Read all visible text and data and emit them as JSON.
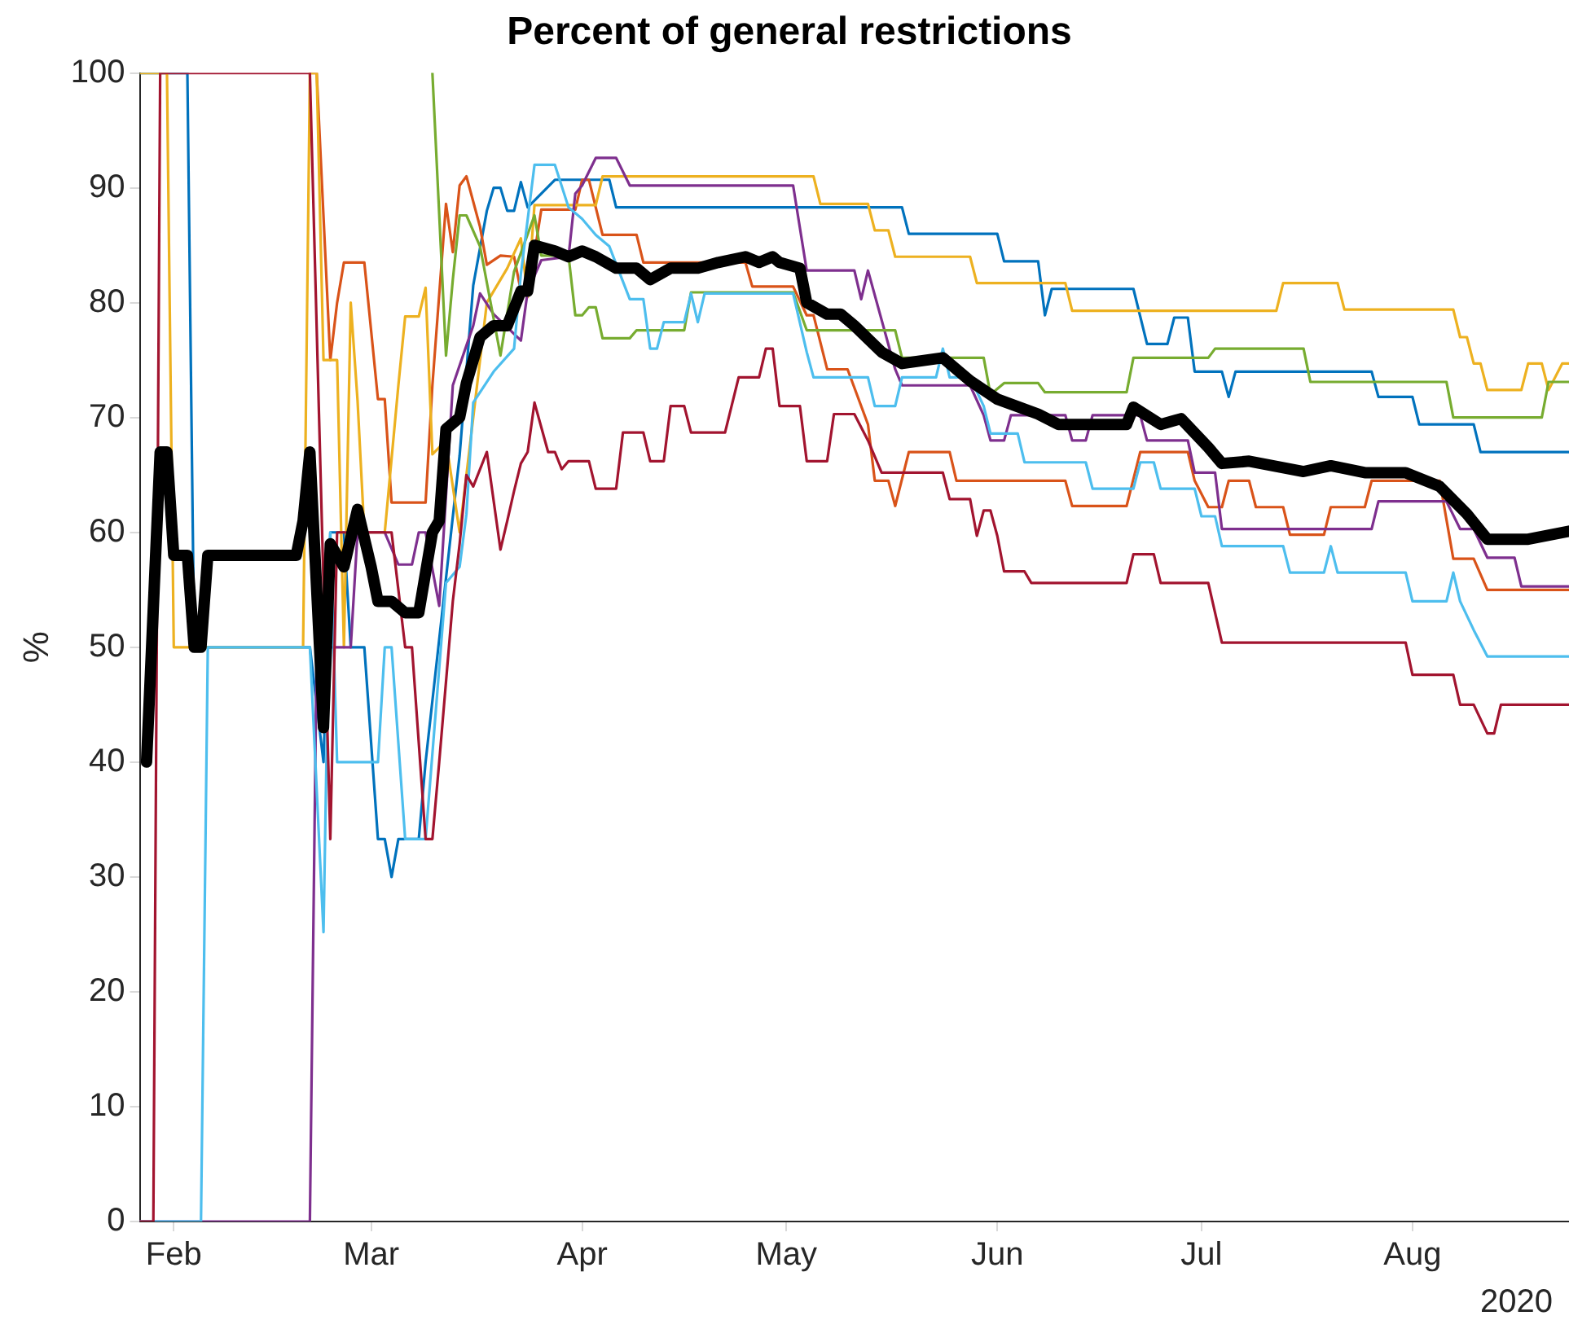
{
  "chart_data": {
    "type": "line",
    "title": "Percent of general restrictions",
    "ylabel": "%",
    "annotations": [
      "2020"
    ],
    "xlim": [
      "2020-01-27",
      "2020-08-24"
    ],
    "xticks": [
      {
        "value": "2020-02-01",
        "label": "Feb"
      },
      {
        "value": "2020-03-01",
        "label": "Mar"
      },
      {
        "value": "2020-04-01",
        "label": "Apr"
      },
      {
        "value": "2020-05-01",
        "label": "May"
      },
      {
        "value": "2020-06-01",
        "label": "Jun"
      },
      {
        "value": "2020-07-01",
        "label": "Jul"
      },
      {
        "value": "2020-08-01",
        "label": "Aug"
      }
    ],
    "ylim": [
      0,
      100
    ],
    "yticks": [
      0,
      10,
      20,
      30,
      40,
      50,
      60,
      70,
      80,
      90,
      100
    ],
    "grid": false,
    "marker": "none",
    "line_style": "solid",
    "series": [
      {
        "color": "#0072bd",
        "x": [
          "2020-01-27",
          "2020-02-03",
          "2020-02-04",
          "2020-02-21",
          "2020-02-23",
          "2020-02-24",
          "2020-02-26",
          "2020-02-27",
          "2020-02-29",
          "2020-03-02",
          "2020-03-03",
          "2020-03-04",
          "2020-03-05",
          "2020-03-08",
          "2020-03-09",
          "2020-03-14",
          "2020-03-16",
          "2020-03-18",
          "2020-03-19",
          "2020-03-20",
          "2020-03-21",
          "2020-03-22",
          "2020-03-23",
          "2020-03-24",
          "2020-03-28",
          "2020-04-05",
          "2020-04-06",
          "2020-05-18",
          "2020-05-19",
          "2020-06-01",
          "2020-06-02",
          "2020-06-07",
          "2020-06-08",
          "2020-06-09",
          "2020-06-21",
          "2020-06-23",
          "2020-06-26",
          "2020-06-27",
          "2020-06-29",
          "2020-06-30",
          "2020-07-04",
          "2020-07-05",
          "2020-07-06",
          "2020-07-26",
          "2020-07-27",
          "2020-08-01",
          "2020-08-02",
          "2020-08-10",
          "2020-08-11",
          "2020-08-24"
        ],
        "values": [
          100,
          100,
          50,
          50,
          40,
          60,
          60,
          50,
          50,
          33.3,
          33.3,
          30,
          33.3,
          33.3,
          40,
          66.7,
          81.5,
          88,
          90,
          90,
          88,
          88,
          90.5,
          88.3,
          90.7,
          90.7,
          88.3,
          88.3,
          86,
          86,
          83.6,
          83.6,
          78.9,
          81.2,
          81.2,
          76.4,
          76.4,
          78.7,
          78.7,
          74,
          74,
          71.8,
          74,
          74,
          71.8,
          71.8,
          69.4,
          69.4,
          67,
          67
        ]
      },
      {
        "color": "#d95319",
        "x": [
          "2020-02-21",
          "2020-02-22",
          "2020-02-24",
          "2020-02-25",
          "2020-02-26",
          "2020-02-29",
          "2020-03-02",
          "2020-03-03",
          "2020-03-04",
          "2020-03-09",
          "2020-03-10",
          "2020-03-12",
          "2020-03-13",
          "2020-03-14",
          "2020-03-15",
          "2020-03-17",
          "2020-03-18",
          "2020-03-20",
          "2020-03-22",
          "2020-03-23",
          "2020-03-24",
          "2020-03-26",
          "2020-03-31",
          "2020-04-01",
          "2020-04-02",
          "2020-04-04",
          "2020-04-09",
          "2020-04-10",
          "2020-04-25",
          "2020-04-26",
          "2020-05-02",
          "2020-05-04",
          "2020-05-05",
          "2020-05-07",
          "2020-05-10",
          "2020-05-13",
          "2020-05-14",
          "2020-05-16",
          "2020-05-17",
          "2020-05-19",
          "2020-05-25",
          "2020-05-26",
          "2020-06-11",
          "2020-06-12",
          "2020-06-20",
          "2020-06-22",
          "2020-06-29",
          "2020-06-30",
          "2020-07-02",
          "2020-07-04",
          "2020-07-05",
          "2020-07-08",
          "2020-07-09",
          "2020-07-13",
          "2020-07-14",
          "2020-07-19",
          "2020-07-20",
          "2020-07-25",
          "2020-07-26",
          "2020-08-05",
          "2020-08-07",
          "2020-08-10",
          "2020-08-12",
          "2020-08-24"
        ],
        "values": [
          100,
          100,
          75,
          80,
          83.5,
          83.5,
          71.6,
          71.6,
          62.6,
          62.6,
          72.8,
          88.6,
          84.4,
          90.2,
          91,
          86.6,
          83.3,
          84.1,
          84,
          81,
          80.5,
          88.1,
          88.1,
          90.7,
          90.7,
          85.9,
          85.9,
          83.5,
          83.5,
          81.4,
          81.4,
          78.9,
          78.9,
          74.2,
          74.2,
          69.4,
          64.5,
          64.5,
          62.3,
          67,
          67,
          64.5,
          64.5,
          62.3,
          62.3,
          67,
          67,
          64.5,
          62.2,
          62.2,
          64.5,
          64.5,
          62.2,
          62.2,
          59.8,
          59.8,
          62.2,
          62.2,
          64.5,
          64.5,
          57.7,
          57.7,
          55,
          55
        ]
      },
      {
        "color": "#edb120",
        "x": [
          "2020-01-27",
          "2020-01-31",
          "2020-02-01",
          "2020-02-20",
          "2020-02-21",
          "2020-02-22",
          "2020-02-23",
          "2020-02-25",
          "2020-02-26",
          "2020-02-27",
          "2020-02-28",
          "2020-02-29",
          "2020-03-03",
          "2020-03-05",
          "2020-03-06",
          "2020-03-08",
          "2020-03-09",
          "2020-03-10",
          "2020-03-12",
          "2020-03-14",
          "2020-03-18",
          "2020-03-21",
          "2020-03-23",
          "2020-03-24",
          "2020-03-25",
          "2020-04-03",
          "2020-04-04",
          "2020-05-05",
          "2020-05-06",
          "2020-05-13",
          "2020-05-14",
          "2020-05-16",
          "2020-05-17",
          "2020-05-28",
          "2020-05-29",
          "2020-06-11",
          "2020-06-12",
          "2020-07-12",
          "2020-07-13",
          "2020-07-21",
          "2020-07-22",
          "2020-08-07",
          "2020-08-08",
          "2020-08-09",
          "2020-08-10",
          "2020-08-11",
          "2020-08-12",
          "2020-08-17",
          "2020-08-18",
          "2020-08-20",
          "2020-08-21",
          "2020-08-23",
          "2020-08-24"
        ],
        "values": [
          100,
          100,
          50,
          50,
          100,
          100,
          75,
          75,
          50,
          80,
          71.5,
          60,
          60,
          72.8,
          78.8,
          78.8,
          81.3,
          66.8,
          68,
          60,
          80,
          83,
          85.6,
          80.5,
          88.5,
          88.5,
          91,
          91,
          88.6,
          88.6,
          86.3,
          86.3,
          84,
          84,
          81.7,
          81.7,
          79.3,
          79.3,
          81.7,
          81.7,
          79.4,
          79.4,
          77,
          77,
          74.7,
          74.7,
          72.4,
          72.4,
          74.7,
          74.7,
          72.4,
          74.7,
          74.7
        ]
      },
      {
        "color": "#7e2f8e",
        "x": [
          "2020-01-27",
          "2020-02-21",
          "2020-02-22",
          "2020-02-27",
          "2020-02-28",
          "2020-03-03",
          "2020-03-05",
          "2020-03-07",
          "2020-03-08",
          "2020-03-09",
          "2020-03-11",
          "2020-03-13",
          "2020-03-16",
          "2020-03-17",
          "2020-03-19",
          "2020-03-23",
          "2020-03-24",
          "2020-03-26",
          "2020-03-30",
          "2020-03-31",
          "2020-04-01",
          "2020-04-03",
          "2020-04-06",
          "2020-04-08",
          "2020-05-02",
          "2020-05-04",
          "2020-05-11",
          "2020-05-12",
          "2020-05-13",
          "2020-05-17",
          "2020-05-18",
          "2020-05-28",
          "2020-05-30",
          "2020-05-31",
          "2020-06-02",
          "2020-06-03",
          "2020-06-11",
          "2020-06-12",
          "2020-06-14",
          "2020-06-15",
          "2020-06-22",
          "2020-06-23",
          "2020-06-29",
          "2020-06-30",
          "2020-07-03",
          "2020-07-04",
          "2020-07-26",
          "2020-07-27",
          "2020-08-06",
          "2020-08-08",
          "2020-08-10",
          "2020-08-12",
          "2020-08-16",
          "2020-08-17",
          "2020-08-24"
        ],
        "values": [
          0,
          0,
          50,
          50,
          60,
          60,
          57.2,
          57.2,
          60,
          60,
          53.6,
          72.8,
          78,
          80.8,
          79,
          76.7,
          81,
          83.7,
          84,
          89.5,
          90.2,
          92.6,
          92.6,
          90.2,
          90.2,
          82.8,
          82.8,
          80.3,
          82.8,
          74.2,
          72.8,
          72.8,
          70.2,
          68,
          68,
          70.2,
          70.2,
          68,
          68,
          70.2,
          70.2,
          68,
          68,
          65.2,
          65.2,
          60.3,
          60.3,
          62.7,
          62.7,
          60.3,
          60.3,
          57.8,
          57.8,
          55.3,
          55.3
        ]
      },
      {
        "color": "#77ac30",
        "x": [
          "2020-03-10",
          "2020-03-12",
          "2020-03-13",
          "2020-03-14",
          "2020-03-15",
          "2020-03-17",
          "2020-03-19",
          "2020-03-20",
          "2020-03-22",
          "2020-03-25",
          "2020-03-26",
          "2020-03-30",
          "2020-03-31",
          "2020-04-01",
          "2020-04-02",
          "2020-04-03",
          "2020-04-04",
          "2020-04-08",
          "2020-04-09",
          "2020-04-16",
          "2020-04-17",
          "2020-05-02",
          "2020-05-04",
          "2020-05-17",
          "2020-05-18",
          "2020-05-30",
          "2020-05-31",
          "2020-06-02",
          "2020-06-07",
          "2020-06-08",
          "2020-06-20",
          "2020-06-21",
          "2020-07-02",
          "2020-07-03",
          "2020-07-16",
          "2020-07-17",
          "2020-08-06",
          "2020-08-07",
          "2020-08-20",
          "2020-08-21",
          "2020-08-24"
        ],
        "values": [
          100,
          75.4,
          82,
          87.6,
          87.6,
          84.9,
          78.6,
          75.4,
          82.7,
          87.6,
          84.1,
          84.1,
          78.9,
          78.9,
          79.6,
          79.6,
          76.9,
          76.9,
          77.6,
          77.6,
          80.9,
          80.9,
          77.6,
          77.6,
          75.2,
          75.2,
          72,
          73,
          73,
          72.2,
          72.2,
          75.2,
          75.2,
          76,
          76,
          73.1,
          73.1,
          70,
          70,
          73.1,
          73.1
        ]
      },
      {
        "color": "#4dbeee",
        "x": [
          "2020-01-27",
          "2020-02-05",
          "2020-02-06",
          "2020-02-21",
          "2020-02-23",
          "2020-02-24",
          "2020-02-25",
          "2020-03-02",
          "2020-03-03",
          "2020-03-04",
          "2020-03-06",
          "2020-03-09",
          "2020-03-12",
          "2020-03-14",
          "2020-03-15",
          "2020-03-16",
          "2020-03-19",
          "2020-03-22",
          "2020-03-23",
          "2020-03-25",
          "2020-03-28",
          "2020-03-30",
          "2020-04-01",
          "2020-04-03",
          "2020-04-05",
          "2020-04-08",
          "2020-04-10",
          "2020-04-11",
          "2020-04-12",
          "2020-04-13",
          "2020-04-16",
          "2020-04-17",
          "2020-04-18",
          "2020-04-19",
          "2020-05-02",
          "2020-05-04",
          "2020-05-05",
          "2020-05-13",
          "2020-05-14",
          "2020-05-17",
          "2020-05-18",
          "2020-05-23",
          "2020-05-24",
          "2020-05-25",
          "2020-05-28",
          "2020-05-30",
          "2020-05-31",
          "2020-06-04",
          "2020-06-05",
          "2020-06-14",
          "2020-06-15",
          "2020-06-21",
          "2020-06-22",
          "2020-06-24",
          "2020-06-25",
          "2020-06-30",
          "2020-07-01",
          "2020-07-03",
          "2020-07-04",
          "2020-07-13",
          "2020-07-14",
          "2020-07-19",
          "2020-07-20",
          "2020-07-21",
          "2020-07-31",
          "2020-08-01",
          "2020-08-06",
          "2020-08-07",
          "2020-08-08",
          "2020-08-10",
          "2020-08-12",
          "2020-08-24"
        ],
        "values": [
          0,
          0,
          50,
          50,
          25.2,
          60,
          40,
          40,
          50,
          50,
          33.3,
          33.3,
          55.6,
          57,
          61.6,
          71.3,
          74,
          76,
          82.5,
          92,
          92,
          88.3,
          87.3,
          85.9,
          84.9,
          80.3,
          80.3,
          76,
          76,
          78.3,
          78.3,
          80.8,
          78.3,
          80.8,
          80.8,
          75.7,
          73.5,
          73.5,
          71,
          71,
          73.5,
          73.5,
          76,
          73.5,
          73.5,
          71,
          68.6,
          68.6,
          66.1,
          66.1,
          63.8,
          63.8,
          66.1,
          66.1,
          63.8,
          63.8,
          61.4,
          61.4,
          58.8,
          58.8,
          56.5,
          56.5,
          58.8,
          56.5,
          56.5,
          54,
          54,
          56.5,
          54,
          51.5,
          49.2,
          49.2
        ]
      },
      {
        "color": "#a2142f",
        "x": [
          "2020-01-27",
          "2020-01-29",
          "2020-01-30",
          "2020-02-21",
          "2020-02-24",
          "2020-02-25",
          "2020-03-04",
          "2020-03-06",
          "2020-03-07",
          "2020-03-09",
          "2020-03-10",
          "2020-03-11",
          "2020-03-13",
          "2020-03-14",
          "2020-03-15",
          "2020-03-16",
          "2020-03-18",
          "2020-03-20",
          "2020-03-21",
          "2020-03-22",
          "2020-03-23",
          "2020-03-24",
          "2020-03-25",
          "2020-03-27",
          "2020-03-28",
          "2020-03-29",
          "2020-03-30",
          "2020-04-02",
          "2020-04-03",
          "2020-04-06",
          "2020-04-07",
          "2020-04-10",
          "2020-04-11",
          "2020-04-13",
          "2020-04-14",
          "2020-04-16",
          "2020-04-17",
          "2020-04-22",
          "2020-04-24",
          "2020-04-27",
          "2020-04-28",
          "2020-04-29",
          "2020-04-30",
          "2020-05-03",
          "2020-05-04",
          "2020-05-07",
          "2020-05-08",
          "2020-05-11",
          "2020-05-13",
          "2020-05-15",
          "2020-05-24",
          "2020-05-25",
          "2020-05-28",
          "2020-05-29",
          "2020-05-30",
          "2020-05-31",
          "2020-06-01",
          "2020-06-02",
          "2020-06-05",
          "2020-06-06",
          "2020-06-20",
          "2020-06-21",
          "2020-06-24",
          "2020-06-25",
          "2020-07-02",
          "2020-07-04",
          "2020-07-31",
          "2020-08-01",
          "2020-08-07",
          "2020-08-08",
          "2020-08-10",
          "2020-08-12",
          "2020-08-13",
          "2020-08-14",
          "2020-08-24"
        ],
        "values": [
          0,
          0,
          100,
          100,
          33.3,
          60,
          60,
          50,
          50,
          33.3,
          33.3,
          40,
          54,
          59,
          65,
          64,
          67,
          58.5,
          61,
          63.6,
          66,
          67,
          71.3,
          67,
          67,
          65.5,
          66.2,
          66.2,
          63.8,
          63.8,
          68.7,
          68.7,
          66.2,
          66.2,
          71,
          71,
          68.7,
          68.7,
          73.5,
          73.5,
          76,
          76,
          71,
          71,
          66.2,
          66.2,
          70.3,
          70.3,
          68,
          65.2,
          65.2,
          62.9,
          62.9,
          59.7,
          61.9,
          61.9,
          59.7,
          56.6,
          56.6,
          55.6,
          55.6,
          58.1,
          58.1,
          55.6,
          55.6,
          50.4,
          50.4,
          47.6,
          47.6,
          45,
          45,
          42.5,
          42.5,
          45,
          45
        ]
      },
      {
        "color": "#000000",
        "x": [
          "2020-01-28",
          "2020-01-30",
          "2020-01-31",
          "2020-02-01",
          "2020-02-03",
          "2020-02-04",
          "2020-02-05",
          "2020-02-06",
          "2020-02-19",
          "2020-02-20",
          "2020-02-21",
          "2020-02-23",
          "2020-02-24",
          "2020-02-25",
          "2020-02-26",
          "2020-02-28",
          "2020-03-01",
          "2020-03-02",
          "2020-03-04",
          "2020-03-06",
          "2020-03-08",
          "2020-03-10",
          "2020-03-11",
          "2020-03-12",
          "2020-03-14",
          "2020-03-15",
          "2020-03-17",
          "2020-03-19",
          "2020-03-21",
          "2020-03-23",
          "2020-03-24",
          "2020-03-25",
          "2020-03-28",
          "2020-03-30",
          "2020-04-01",
          "2020-04-03",
          "2020-04-06",
          "2020-04-09",
          "2020-04-11",
          "2020-04-14",
          "2020-04-18",
          "2020-04-21",
          "2020-04-25",
          "2020-04-27",
          "2020-04-29",
          "2020-04-30",
          "2020-05-03",
          "2020-05-04",
          "2020-05-07",
          "2020-05-09",
          "2020-05-11",
          "2020-05-15",
          "2020-05-18",
          "2020-05-24",
          "2020-05-28",
          "2020-06-01",
          "2020-06-07",
          "2020-06-10",
          "2020-06-20",
          "2020-06-21",
          "2020-06-25",
          "2020-06-28",
          "2020-07-02",
          "2020-07-04",
          "2020-07-08",
          "2020-07-16",
          "2020-07-20",
          "2020-07-25",
          "2020-07-31",
          "2020-08-05",
          "2020-08-09",
          "2020-08-12",
          "2020-08-18",
          "2020-08-24"
        ],
        "values": [
          40,
          67,
          67,
          58,
          58,
          50,
          50,
          58,
          58,
          61,
          67,
          43,
          59,
          58,
          57,
          62,
          57,
          54,
          54,
          53,
          53,
          60,
          61,
          69,
          70,
          73,
          77,
          78,
          78,
          81,
          81,
          85,
          84.5,
          84,
          84.5,
          84,
          83,
          83,
          82,
          83,
          83,
          83.5,
          84,
          83.5,
          84,
          83.5,
          83,
          80,
          79,
          79,
          78,
          75.7,
          74.7,
          75.2,
          73.2,
          71.6,
          70.3,
          69.4,
          69.4,
          70.9,
          69.4,
          69.9,
          67.4,
          66,
          66.2,
          65.3,
          65.8,
          65.2,
          65.2,
          64,
          61.6,
          59.4,
          59.4,
          60.1
        ]
      }
    ]
  }
}
